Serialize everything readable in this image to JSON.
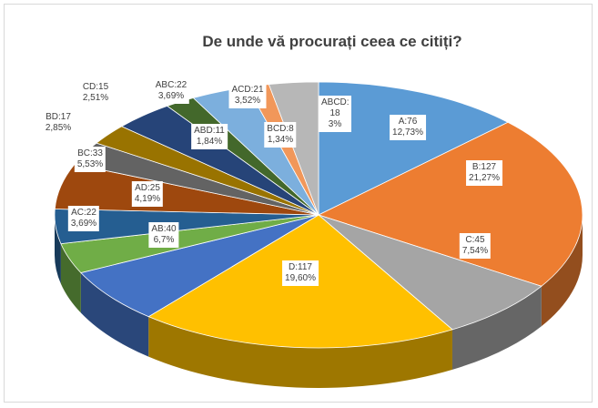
{
  "chart_data": {
    "type": "pie",
    "three_d": true,
    "title": "De unde vă procurați ceea ce citiți?",
    "categories": [
      "A",
      "B",
      "C",
      "D",
      "AB",
      "AC",
      "AD",
      "BC",
      "BD",
      "CD",
      "ABC",
      "ABD",
      "ACD",
      "BCD",
      "ABCD"
    ],
    "values": [
      76,
      127,
      45,
      117,
      40,
      22,
      25,
      33,
      17,
      15,
      22,
      11,
      21,
      8,
      18
    ],
    "value_labels": [
      "A:76",
      "B:127",
      "C:45",
      "D:117",
      "AB:40",
      "AC:22",
      "AD:25",
      "BC:33",
      "BD:17",
      "CD:15",
      "ABC:22",
      "ABD:11",
      "ACD:21",
      "BCD:8",
      "ABCD: 18"
    ],
    "percent_labels": [
      "12,73%",
      "21,27%",
      "7,54%",
      "19,60%",
      "6,7%",
      "3,69%",
      "4,19%",
      "5,53%",
      "2,85%",
      "2,51%",
      "3,69%",
      "1,84%",
      "3,52%",
      "1,34%",
      "3%"
    ],
    "colors": [
      "#5b9bd5",
      "#ed7d31",
      "#a5a5a5",
      "#ffc000",
      "#4472c4",
      "#70ad47",
      "#255e91",
      "#9e480e",
      "#636363",
      "#997300",
      "#264478",
      "#43682b",
      "#7cafdd",
      "#f1975a",
      "#b7b7b7"
    ]
  }
}
